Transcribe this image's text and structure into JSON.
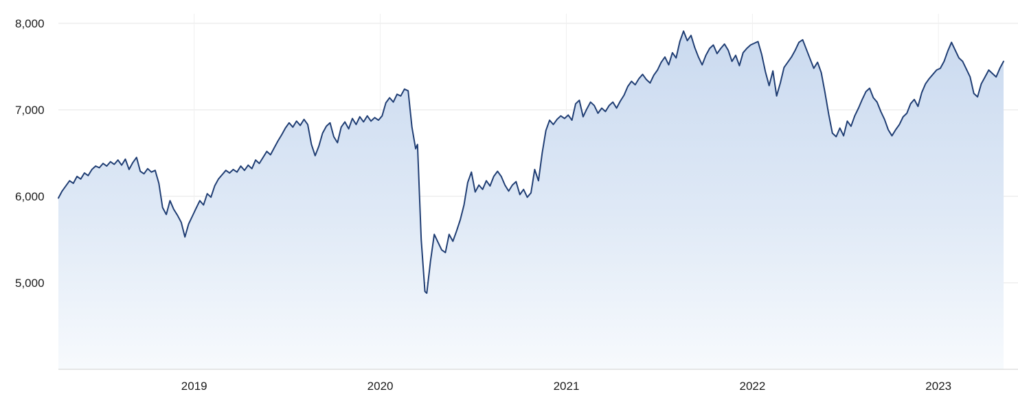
{
  "chart_data": {
    "type": "area",
    "title": "",
    "xlabel": "",
    "ylabel": "",
    "legend": false,
    "grid": true,
    "xlim": [
      2018.27,
      2023.42
    ],
    "ylim": [
      4000,
      8000
    ],
    "x_ticks": [
      {
        "value": 2019,
        "label": "2019"
      },
      {
        "value": 2020,
        "label": "2020"
      },
      {
        "value": 2021,
        "label": "2021"
      },
      {
        "value": 2022,
        "label": "2022"
      },
      {
        "value": 2023,
        "label": "2023"
      }
    ],
    "y_ticks": [
      {
        "value": 5000,
        "label": "5,000"
      },
      {
        "value": 6000,
        "label": "6,000"
      },
      {
        "value": 7000,
        "label": "7,000"
      },
      {
        "value": 8000,
        "label": "8,000"
      }
    ],
    "colors": {
      "line": "#1f3d73",
      "fill_top": "#c9d9ef",
      "fill_mid": "#dfe9f6",
      "fill_bottom": "#f7fafd",
      "grid": "#e6e6e6",
      "vgrid": "#efefef",
      "axis_line": "#cfcfcf",
      "tick_text": "#1a1a1a"
    },
    "points": [
      [
        2018.27,
        5980
      ],
      [
        2018.29,
        6060
      ],
      [
        2018.31,
        6120
      ],
      [
        2018.33,
        6180
      ],
      [
        2018.35,
        6150
      ],
      [
        2018.37,
        6230
      ],
      [
        2018.39,
        6200
      ],
      [
        2018.41,
        6270
      ],
      [
        2018.43,
        6240
      ],
      [
        2018.45,
        6310
      ],
      [
        2018.47,
        6350
      ],
      [
        2018.49,
        6330
      ],
      [
        2018.51,
        6380
      ],
      [
        2018.53,
        6350
      ],
      [
        2018.55,
        6400
      ],
      [
        2018.57,
        6370
      ],
      [
        2018.59,
        6420
      ],
      [
        2018.61,
        6360
      ],
      [
        2018.63,
        6430
      ],
      [
        2018.65,
        6310
      ],
      [
        2018.67,
        6390
      ],
      [
        2018.69,
        6450
      ],
      [
        2018.71,
        6290
      ],
      [
        2018.73,
        6260
      ],
      [
        2018.75,
        6320
      ],
      [
        2018.77,
        6280
      ],
      [
        2018.79,
        6300
      ],
      [
        2018.81,
        6150
      ],
      [
        2018.83,
        5870
      ],
      [
        2018.85,
        5790
      ],
      [
        2018.87,
        5950
      ],
      [
        2018.89,
        5850
      ],
      [
        2018.91,
        5780
      ],
      [
        2018.93,
        5700
      ],
      [
        2018.95,
        5530
      ],
      [
        2018.97,
        5680
      ],
      [
        2018.99,
        5770
      ],
      [
        2019.01,
        5860
      ],
      [
        2019.03,
        5950
      ],
      [
        2019.05,
        5900
      ],
      [
        2019.07,
        6030
      ],
      [
        2019.09,
        5990
      ],
      [
        2019.11,
        6120
      ],
      [
        2019.13,
        6200
      ],
      [
        2019.15,
        6250
      ],
      [
        2019.17,
        6300
      ],
      [
        2019.19,
        6270
      ],
      [
        2019.21,
        6310
      ],
      [
        2019.23,
        6280
      ],
      [
        2019.25,
        6350
      ],
      [
        2019.27,
        6300
      ],
      [
        2019.29,
        6360
      ],
      [
        2019.31,
        6320
      ],
      [
        2019.33,
        6420
      ],
      [
        2019.35,
        6380
      ],
      [
        2019.37,
        6450
      ],
      [
        2019.39,
        6520
      ],
      [
        2019.41,
        6480
      ],
      [
        2019.43,
        6560
      ],
      [
        2019.45,
        6640
      ],
      [
        2019.47,
        6710
      ],
      [
        2019.49,
        6790
      ],
      [
        2019.51,
        6850
      ],
      [
        2019.53,
        6800
      ],
      [
        2019.55,
        6870
      ],
      [
        2019.57,
        6820
      ],
      [
        2019.59,
        6890
      ],
      [
        2019.61,
        6830
      ],
      [
        2019.63,
        6600
      ],
      [
        2019.65,
        6470
      ],
      [
        2019.67,
        6580
      ],
      [
        2019.69,
        6730
      ],
      [
        2019.71,
        6810
      ],
      [
        2019.73,
        6850
      ],
      [
        2019.75,
        6690
      ],
      [
        2019.77,
        6620
      ],
      [
        2019.79,
        6800
      ],
      [
        2019.81,
        6860
      ],
      [
        2019.83,
        6780
      ],
      [
        2019.85,
        6900
      ],
      [
        2019.87,
        6830
      ],
      [
        2019.89,
        6920
      ],
      [
        2019.91,
        6860
      ],
      [
        2019.93,
        6930
      ],
      [
        2019.95,
        6870
      ],
      [
        2019.97,
        6910
      ],
      [
        2019.99,
        6880
      ],
      [
        2020.01,
        6930
      ],
      [
        2020.03,
        7080
      ],
      [
        2020.05,
        7140
      ],
      [
        2020.07,
        7090
      ],
      [
        2020.09,
        7180
      ],
      [
        2020.11,
        7160
      ],
      [
        2020.13,
        7240
      ],
      [
        2020.15,
        7220
      ],
      [
        2020.17,
        6800
      ],
      [
        2020.19,
        6550
      ],
      [
        2020.2,
        6600
      ],
      [
        2020.22,
        5500
      ],
      [
        2020.24,
        4900
      ],
      [
        2020.25,
        4880
      ],
      [
        2020.27,
        5250
      ],
      [
        2020.29,
        5560
      ],
      [
        2020.31,
        5470
      ],
      [
        2020.33,
        5380
      ],
      [
        2020.35,
        5350
      ],
      [
        2020.37,
        5560
      ],
      [
        2020.39,
        5480
      ],
      [
        2020.41,
        5600
      ],
      [
        2020.43,
        5730
      ],
      [
        2020.45,
        5900
      ],
      [
        2020.47,
        6160
      ],
      [
        2020.49,
        6280
      ],
      [
        2020.51,
        6050
      ],
      [
        2020.53,
        6130
      ],
      [
        2020.55,
        6080
      ],
      [
        2020.57,
        6180
      ],
      [
        2020.59,
        6120
      ],
      [
        2020.61,
        6230
      ],
      [
        2020.63,
        6290
      ],
      [
        2020.65,
        6230
      ],
      [
        2020.67,
        6130
      ],
      [
        2020.69,
        6060
      ],
      [
        2020.71,
        6130
      ],
      [
        2020.73,
        6170
      ],
      [
        2020.75,
        6020
      ],
      [
        2020.77,
        6080
      ],
      [
        2020.79,
        5990
      ],
      [
        2020.81,
        6040
      ],
      [
        2020.83,
        6310
      ],
      [
        2020.85,
        6180
      ],
      [
        2020.87,
        6500
      ],
      [
        2020.89,
        6760
      ],
      [
        2020.91,
        6880
      ],
      [
        2020.93,
        6830
      ],
      [
        2020.95,
        6890
      ],
      [
        2020.97,
        6930
      ],
      [
        2020.99,
        6900
      ],
      [
        2021.01,
        6940
      ],
      [
        2021.03,
        6880
      ],
      [
        2021.05,
        7070
      ],
      [
        2021.07,
        7110
      ],
      [
        2021.09,
        6920
      ],
      [
        2021.11,
        7010
      ],
      [
        2021.13,
        7090
      ],
      [
        2021.15,
        7050
      ],
      [
        2021.17,
        6960
      ],
      [
        2021.19,
        7020
      ],
      [
        2021.21,
        6980
      ],
      [
        2021.23,
        7050
      ],
      [
        2021.25,
        7090
      ],
      [
        2021.27,
        7020
      ],
      [
        2021.29,
        7100
      ],
      [
        2021.31,
        7170
      ],
      [
        2021.33,
        7270
      ],
      [
        2021.35,
        7330
      ],
      [
        2021.37,
        7290
      ],
      [
        2021.39,
        7360
      ],
      [
        2021.41,
        7410
      ],
      [
        2021.43,
        7350
      ],
      [
        2021.45,
        7310
      ],
      [
        2021.47,
        7400
      ],
      [
        2021.49,
        7460
      ],
      [
        2021.51,
        7550
      ],
      [
        2021.53,
        7610
      ],
      [
        2021.55,
        7520
      ],
      [
        2021.57,
        7660
      ],
      [
        2021.59,
        7600
      ],
      [
        2021.61,
        7790
      ],
      [
        2021.63,
        7910
      ],
      [
        2021.65,
        7800
      ],
      [
        2021.67,
        7860
      ],
      [
        2021.69,
        7720
      ],
      [
        2021.71,
        7610
      ],
      [
        2021.73,
        7520
      ],
      [
        2021.75,
        7630
      ],
      [
        2021.77,
        7710
      ],
      [
        2021.79,
        7750
      ],
      [
        2021.81,
        7650
      ],
      [
        2021.83,
        7710
      ],
      [
        2021.85,
        7760
      ],
      [
        2021.87,
        7690
      ],
      [
        2021.89,
        7560
      ],
      [
        2021.91,
        7630
      ],
      [
        2021.93,
        7510
      ],
      [
        2021.95,
        7660
      ],
      [
        2021.97,
        7710
      ],
      [
        2021.99,
        7750
      ],
      [
        2022.01,
        7770
      ],
      [
        2022.03,
        7790
      ],
      [
        2022.05,
        7640
      ],
      [
        2022.07,
        7440
      ],
      [
        2022.09,
        7280
      ],
      [
        2022.11,
        7450
      ],
      [
        2022.13,
        7160
      ],
      [
        2022.15,
        7310
      ],
      [
        2022.17,
        7490
      ],
      [
        2022.19,
        7550
      ],
      [
        2022.21,
        7610
      ],
      [
        2022.23,
        7690
      ],
      [
        2022.25,
        7780
      ],
      [
        2022.27,
        7810
      ],
      [
        2022.29,
        7700
      ],
      [
        2022.31,
        7590
      ],
      [
        2022.33,
        7480
      ],
      [
        2022.35,
        7550
      ],
      [
        2022.37,
        7430
      ],
      [
        2022.39,
        7200
      ],
      [
        2022.41,
        6950
      ],
      [
        2022.43,
        6730
      ],
      [
        2022.45,
        6690
      ],
      [
        2022.47,
        6790
      ],
      [
        2022.49,
        6700
      ],
      [
        2022.51,
        6870
      ],
      [
        2022.53,
        6810
      ],
      [
        2022.55,
        6930
      ],
      [
        2022.57,
        7020
      ],
      [
        2022.59,
        7120
      ],
      [
        2022.61,
        7210
      ],
      [
        2022.63,
        7250
      ],
      [
        2022.65,
        7140
      ],
      [
        2022.67,
        7090
      ],
      [
        2022.69,
        6980
      ],
      [
        2022.71,
        6890
      ],
      [
        2022.73,
        6770
      ],
      [
        2022.75,
        6700
      ],
      [
        2022.77,
        6770
      ],
      [
        2022.79,
        6830
      ],
      [
        2022.81,
        6920
      ],
      [
        2022.83,
        6960
      ],
      [
        2022.85,
        7070
      ],
      [
        2022.87,
        7120
      ],
      [
        2022.89,
        7040
      ],
      [
        2022.91,
        7200
      ],
      [
        2022.93,
        7300
      ],
      [
        2022.95,
        7360
      ],
      [
        2022.97,
        7410
      ],
      [
        2022.99,
        7460
      ],
      [
        2023.01,
        7480
      ],
      [
        2023.03,
        7560
      ],
      [
        2023.05,
        7680
      ],
      [
        2023.07,
        7780
      ],
      [
        2023.09,
        7690
      ],
      [
        2023.11,
        7600
      ],
      [
        2023.13,
        7560
      ],
      [
        2023.15,
        7470
      ],
      [
        2023.17,
        7380
      ],
      [
        2023.19,
        7190
      ],
      [
        2023.21,
        7150
      ],
      [
        2023.23,
        7300
      ],
      [
        2023.25,
        7380
      ],
      [
        2023.27,
        7460
      ],
      [
        2023.29,
        7420
      ],
      [
        2023.31,
        7380
      ],
      [
        2023.33,
        7480
      ],
      [
        2023.35,
        7560
      ]
    ]
  }
}
